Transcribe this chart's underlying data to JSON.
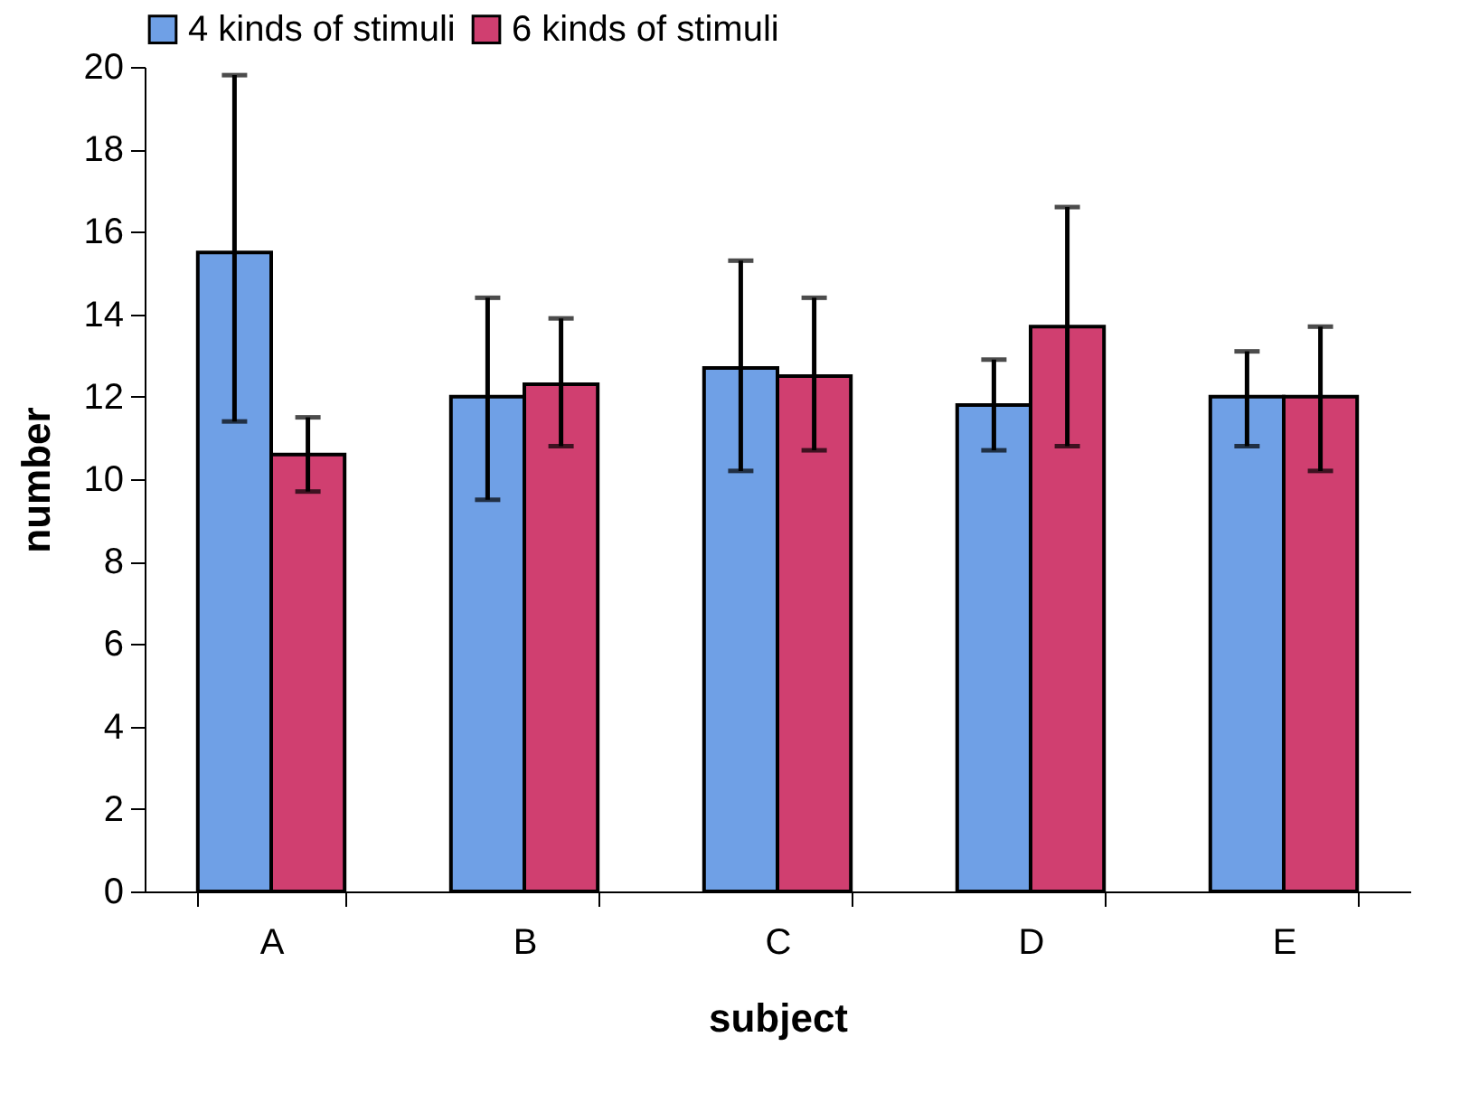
{
  "chart_data": {
    "type": "bar",
    "xlabel": "subject",
    "ylabel": "number",
    "categories": [
      "A",
      "B",
      "C",
      "D",
      "E"
    ],
    "series": [
      {
        "name": "4 kinds of stimuli",
        "color": "#6fa0e6",
        "values": [
          15.5,
          12.0,
          12.7,
          11.8,
          12.0
        ],
        "errors": [
          [
            11.4,
            19.8
          ],
          [
            9.5,
            14.4
          ],
          [
            10.2,
            15.3
          ],
          [
            10.7,
            12.9
          ],
          [
            10.8,
            13.1
          ]
        ]
      },
      {
        "name": "6 kinds of stimuli",
        "color": "#d03f70",
        "values": [
          10.6,
          12.3,
          12.5,
          13.7,
          12.0
        ],
        "errors": [
          [
            9.7,
            11.5
          ],
          [
            10.8,
            13.9
          ],
          [
            10.7,
            14.4
          ],
          [
            10.8,
            16.6
          ],
          [
            10.2,
            13.7
          ]
        ]
      }
    ],
    "ylim": [
      0,
      20
    ],
    "yticks": [
      0,
      2,
      4,
      6,
      8,
      10,
      12,
      14,
      16,
      18,
      20
    ],
    "grid": false,
    "legend": "top"
  }
}
